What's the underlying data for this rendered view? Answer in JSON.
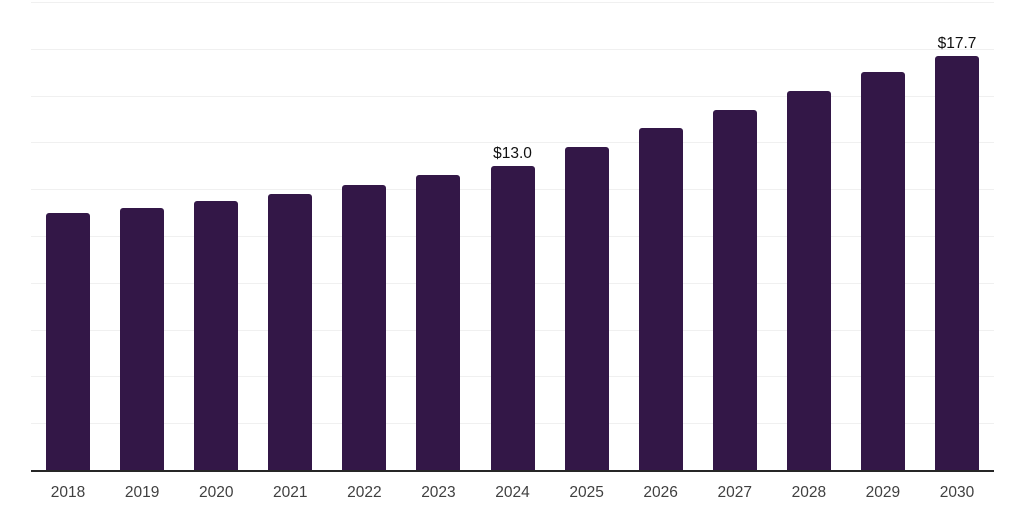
{
  "chart_data": {
    "type": "bar",
    "title": "",
    "xlabel": "",
    "ylabel": "",
    "categories": [
      "2018",
      "2019",
      "2020",
      "2021",
      "2022",
      "2023",
      "2024",
      "2025",
      "2026",
      "2027",
      "2028",
      "2029",
      "2030"
    ],
    "values": [
      11.0,
      11.2,
      11.5,
      11.8,
      12.2,
      12.6,
      13.0,
      13.8,
      14.6,
      15.4,
      16.2,
      17.0,
      17.7
    ],
    "data_labels": [
      "",
      "",
      "",
      "",
      "",
      "",
      "$13.0",
      "",
      "",
      "",
      "",
      "",
      "$17.7"
    ],
    "ylim": [
      0,
      20
    ],
    "gridline_step": 2,
    "grid": "horizontal",
    "legend": "none",
    "colors": {
      "bar": "#331747",
      "axis": "#262626",
      "tick_label": "#404040",
      "data_label": "#111111",
      "gridline": "#f0f0f0",
      "background": "#ffffff"
    }
  }
}
